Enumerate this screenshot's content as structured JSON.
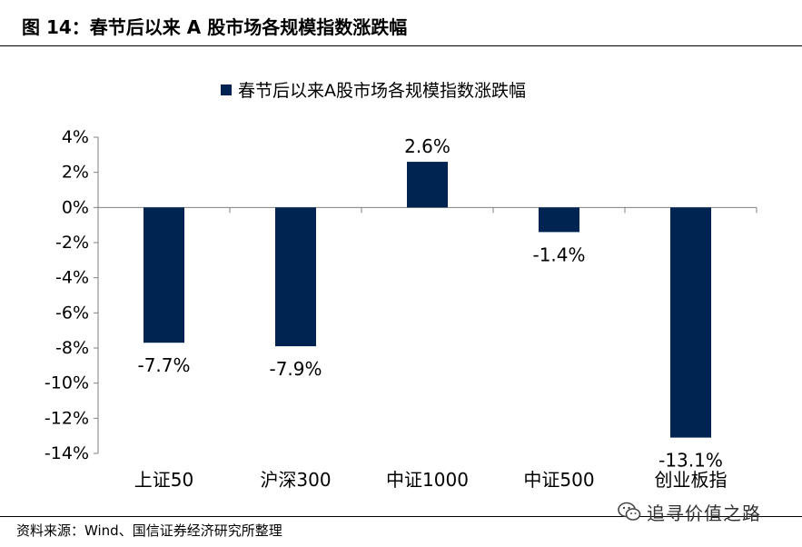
{
  "figure": {
    "title": "图 14：春节后以来 A 股市场各规模指数涨跌幅"
  },
  "chart_data": {
    "type": "bar",
    "title": "",
    "xlabel": "",
    "ylabel": "",
    "categories": [
      "上证50",
      "沪深300",
      "中证1000",
      "中证500",
      "创业板指"
    ],
    "series": [
      {
        "name": "春节后以来A股市场各规模指数涨跌幅",
        "values": [
          -7.7,
          -7.9,
          2.6,
          -1.4,
          -13.1
        ]
      }
    ],
    "data_labels": [
      "-7.7%",
      "-7.9%",
      "2.6%",
      "-1.4%",
      "-13.1%"
    ],
    "ylim": [
      -14,
      4
    ],
    "yticks": [
      "4%",
      "2%",
      "0%",
      "-2%",
      "-4%",
      "-6%",
      "-8%",
      "-10%",
      "-12%",
      "-14%"
    ],
    "ytick_values": [
      4,
      2,
      0,
      -2,
      -4,
      -6,
      -8,
      -10,
      -12,
      -14
    ],
    "grid": false,
    "legend_position": "top",
    "bar_color": "#002452"
  },
  "footer": {
    "source": "资料来源：Wind、国信证券经济研究所整理"
  },
  "watermark": {
    "text": "追寻价值之路",
    "icon": "wechat-icon"
  }
}
